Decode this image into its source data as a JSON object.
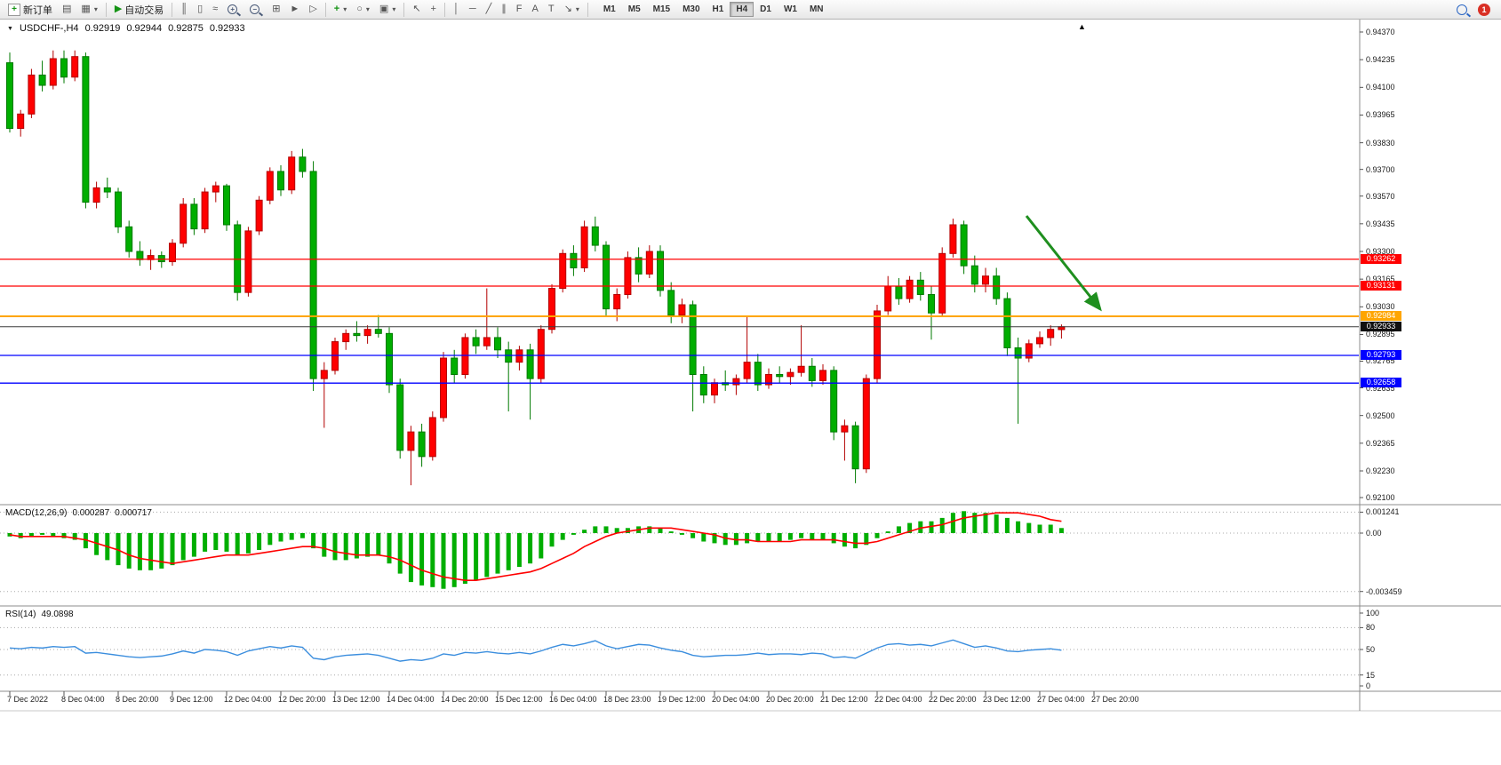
{
  "toolbar": {
    "new_order_label": "新订单",
    "auto_trading_label": "自动交易",
    "timeframes": [
      "M1",
      "M5",
      "M15",
      "M30",
      "H1",
      "H4",
      "D1",
      "W1",
      "MN"
    ],
    "active_timeframe": "H4",
    "notification_badge": "1",
    "glyphs": {
      "new_order_plus": "+",
      "new_chart": "▤",
      "profiles": "▦",
      "caret": "▾",
      "play": "▶",
      "bars_chart": "║",
      "candle_chart": "▯",
      "line_chart": "≈",
      "zoom_in": "+",
      "zoom_out": "−",
      "tile_windows": "⊞",
      "auto_scroll": "►",
      "chart_shift": "▷",
      "indicators_plus": "+",
      "clock": "○",
      "template": "▣",
      "cursor": "↖",
      "crosshair": "+",
      "vline": "│",
      "hline": "─",
      "trendline": "╱",
      "channel": "∥",
      "fibonacci": "F",
      "text_tool": "A",
      "label_tool": "T",
      "arrows_tool": "↘"
    }
  },
  "glyphs": {
    "header_triangle": "▼",
    "scroll_to_end_marker": "▲"
  },
  "chart_header": {
    "symbol_period": "USDCHF-,H4",
    "open": "0.92919",
    "high": "0.92944",
    "low": "0.92875",
    "close": "0.92933"
  },
  "macd_pane": {
    "label": "MACD(12,26,9)",
    "value_main": "0.000287",
    "value_signal": "0.000717"
  },
  "rsi_pane": {
    "label": "RSI(14)",
    "value": "49.0898"
  },
  "chart_data": {
    "type": "candlestick",
    "symbol": "USDCHF-",
    "period": "H4",
    "last_candle_ohlc": {
      "open": 0.92919,
      "high": 0.92944,
      "low": 0.92875,
      "close": 0.92933
    },
    "colors": {
      "up_fill": "#FF0000",
      "up_stroke": "#B30000",
      "down_fill": "#00AE00",
      "down_stroke": "#007A00",
      "macd_bar": "#00AE00",
      "macd_signal": "#FF0000",
      "rsi_line": "#3B8EDE"
    },
    "price_axis": {
      "top_price": 0.9437,
      "bottom_price": 0.921,
      "labels": [
        "0.94370",
        "0.94235",
        "0.94100",
        "0.93965",
        "0.93830",
        "0.93700",
        "0.93570",
        "0.93435",
        "0.93300",
        "0.93165",
        "0.93030",
        "0.92895",
        "0.92765",
        "0.92635",
        "0.92500",
        "0.92365",
        "0.92230",
        "0.92100"
      ]
    },
    "levels": [
      {
        "name": "resistance-upper",
        "price": 0.93262,
        "label": "0.93262",
        "color": "#FF0000",
        "width": 1.3,
        "badge_color": "#FF0000"
      },
      {
        "name": "resistance-lower",
        "price": 0.93131,
        "label": "0.93131",
        "color": "#FF0000",
        "width": 1.3,
        "badge_color": "#FF0000"
      },
      {
        "name": "pivot",
        "price": 0.92984,
        "label": "0.92984",
        "color": "#FFA500",
        "width": 2,
        "badge_color": "#FFA500"
      },
      {
        "name": "current-price",
        "price": 0.92933,
        "label": "0.92933",
        "color": "#3C3C3C",
        "width": 1,
        "badge_color": "#101010"
      },
      {
        "name": "support-upper",
        "price": 0.92793,
        "label": "0.92793",
        "color": "#0000FF",
        "width": 1.3,
        "badge_color": "#0000FF"
      },
      {
        "name": "support-lower",
        "price": 0.92658,
        "label": "0.92658",
        "color": "#0000FF",
        "width": 1.3,
        "badge_color": "#0000FF"
      }
    ],
    "candles": [
      [
        0.9422,
        0.9427,
        0.9388,
        0.939
      ],
      [
        0.939,
        0.9399,
        0.9386,
        0.9397
      ],
      [
        0.9397,
        0.9419,
        0.9395,
        0.9416
      ],
      [
        0.9416,
        0.9423,
        0.9408,
        0.9411
      ],
      [
        0.9411,
        0.9428,
        0.9409,
        0.9424
      ],
      [
        0.9424,
        0.9428,
        0.9412,
        0.9415
      ],
      [
        0.9415,
        0.9428,
        0.9413,
        0.9425
      ],
      [
        0.9425,
        0.9427,
        0.9351,
        0.9354
      ],
      [
        0.9354,
        0.9364,
        0.9351,
        0.9361
      ],
      [
        0.9361,
        0.9366,
        0.9356,
        0.9359
      ],
      [
        0.9359,
        0.9361,
        0.9339,
        0.9342
      ],
      [
        0.9342,
        0.9345,
        0.9327,
        0.933
      ],
      [
        0.933,
        0.9335,
        0.9323,
        0.9326
      ],
      [
        0.9326,
        0.9331,
        0.9321,
        0.9328
      ],
      [
        0.9328,
        0.933,
        0.9322,
        0.9325
      ],
      [
        0.9325,
        0.9336,
        0.9323,
        0.9334
      ],
      [
        0.9334,
        0.9356,
        0.9332,
        0.9353
      ],
      [
        0.9353,
        0.9356,
        0.9338,
        0.9341
      ],
      [
        0.9341,
        0.9361,
        0.9339,
        0.9359
      ],
      [
        0.9359,
        0.9364,
        0.9354,
        0.9362
      ],
      [
        0.9362,
        0.9363,
        0.934,
        0.9343
      ],
      [
        0.9343,
        0.9345,
        0.9306,
        0.931
      ],
      [
        0.931,
        0.9342,
        0.9308,
        0.934
      ],
      [
        0.934,
        0.9357,
        0.9338,
        0.9355
      ],
      [
        0.9355,
        0.9371,
        0.9353,
        0.9369
      ],
      [
        0.9369,
        0.9372,
        0.9357,
        0.936
      ],
      [
        0.936,
        0.9379,
        0.9358,
        0.9376
      ],
      [
        0.9376,
        0.938,
        0.9366,
        0.9369
      ],
      [
        0.9369,
        0.9374,
        0.9262,
        0.9268
      ],
      [
        0.9268,
        0.9276,
        0.9244,
        0.9272
      ],
      [
        0.9272,
        0.9288,
        0.927,
        0.9286
      ],
      [
        0.9286,
        0.9292,
        0.9282,
        0.929
      ],
      [
        0.929,
        0.9296,
        0.9286,
        0.9289
      ],
      [
        0.9289,
        0.9294,
        0.9285,
        0.9292
      ],
      [
        0.9292,
        0.9299,
        0.9288,
        0.929
      ],
      [
        0.929,
        0.9293,
        0.9261,
        0.9265
      ],
      [
        0.9265,
        0.9268,
        0.9229,
        0.9233
      ],
      [
        0.9233,
        0.9245,
        0.9216,
        0.9242
      ],
      [
        0.9242,
        0.9246,
        0.9225,
        0.923
      ],
      [
        0.923,
        0.9252,
        0.9228,
        0.9249
      ],
      [
        0.9249,
        0.9281,
        0.9247,
        0.9278
      ],
      [
        0.9278,
        0.9282,
        0.9266,
        0.927
      ],
      [
        0.927,
        0.929,
        0.9268,
        0.9288
      ],
      [
        0.9288,
        0.9292,
        0.928,
        0.9284
      ],
      [
        0.9284,
        0.9312,
        0.9282,
        0.9288
      ],
      [
        0.9288,
        0.9293,
        0.9278,
        0.9282
      ],
      [
        0.9282,
        0.9286,
        0.9252,
        0.9276
      ],
      [
        0.9276,
        0.9284,
        0.9272,
        0.9282
      ],
      [
        0.9282,
        0.9285,
        0.9248,
        0.9268
      ],
      [
        0.9268,
        0.9294,
        0.9266,
        0.9292
      ],
      [
        0.9292,
        0.9314,
        0.929,
        0.9312
      ],
      [
        0.9312,
        0.9331,
        0.931,
        0.9329
      ],
      [
        0.9329,
        0.9333,
        0.9318,
        0.9322
      ],
      [
        0.9322,
        0.9345,
        0.932,
        0.9342
      ],
      [
        0.9342,
        0.9347,
        0.933,
        0.9333
      ],
      [
        0.9333,
        0.9335,
        0.9298,
        0.9302
      ],
      [
        0.9302,
        0.9312,
        0.9296,
        0.9309
      ],
      [
        0.9309,
        0.933,
        0.9307,
        0.9327
      ],
      [
        0.9327,
        0.9332,
        0.9315,
        0.9319
      ],
      [
        0.9319,
        0.9333,
        0.9317,
        0.933
      ],
      [
        0.933,
        0.9333,
        0.9308,
        0.9311
      ],
      [
        0.9311,
        0.9315,
        0.9295,
        0.9299
      ],
      [
        0.9299,
        0.9307,
        0.9295,
        0.9304
      ],
      [
        0.9304,
        0.9306,
        0.9252,
        0.927
      ],
      [
        0.927,
        0.9274,
        0.9256,
        0.926
      ],
      [
        0.926,
        0.9268,
        0.9256,
        0.9266
      ],
      [
        0.9266,
        0.9272,
        0.9262,
        0.9265
      ],
      [
        0.9265,
        0.927,
        0.926,
        0.9268
      ],
      [
        0.9268,
        0.9298,
        0.9266,
        0.9276
      ],
      [
        0.9276,
        0.928,
        0.9262,
        0.9265
      ],
      [
        0.9265,
        0.9273,
        0.9263,
        0.927
      ],
      [
        0.927,
        0.9274,
        0.9266,
        0.9269
      ],
      [
        0.9269,
        0.9273,
        0.9265,
        0.9271
      ],
      [
        0.9271,
        0.9294,
        0.9269,
        0.9274
      ],
      [
        0.9274,
        0.9278,
        0.9264,
        0.9267
      ],
      [
        0.9267,
        0.9275,
        0.9265,
        0.9272
      ],
      [
        0.9272,
        0.9274,
        0.9238,
        0.9242
      ],
      [
        0.9242,
        0.9248,
        0.9228,
        0.9245
      ],
      [
        0.9245,
        0.9247,
        0.9217,
        0.9224
      ],
      [
        0.9224,
        0.927,
        0.9222,
        0.9268
      ],
      [
        0.9268,
        0.9304,
        0.9266,
        0.9301
      ],
      [
        0.9301,
        0.9318,
        0.9299,
        0.9313
      ],
      [
        0.9313,
        0.9317,
        0.9304,
        0.9307
      ],
      [
        0.9307,
        0.9318,
        0.9305,
        0.9316
      ],
      [
        0.9316,
        0.932,
        0.9306,
        0.9309
      ],
      [
        0.9309,
        0.9313,
        0.9287,
        0.93
      ],
      [
        0.93,
        0.9332,
        0.9298,
        0.9329
      ],
      [
        0.9329,
        0.9346,
        0.9327,
        0.9343
      ],
      [
        0.9343,
        0.9345,
        0.9319,
        0.9323
      ],
      [
        0.9323,
        0.9328,
        0.931,
        0.9314
      ],
      [
        0.9314,
        0.9322,
        0.931,
        0.9318
      ],
      [
        0.9318,
        0.9322,
        0.9304,
        0.9307
      ],
      [
        0.9307,
        0.931,
        0.9279,
        0.9283
      ],
      [
        0.9283,
        0.9288,
        0.9246,
        0.9278
      ],
      [
        0.9278,
        0.9287,
        0.9276,
        0.9285
      ],
      [
        0.9285,
        0.9291,
        0.9283,
        0.9288
      ],
      [
        0.9288,
        0.9294,
        0.9284,
        0.9292
      ],
      [
        0.92919,
        0.92944,
        0.92875,
        0.92933
      ]
    ],
    "time_axis": {
      "label_every": 5,
      "labels": [
        "7 Dec 2022",
        "8 Dec 04:00",
        "8 Dec 20:00",
        "9 Dec 12:00",
        "12 Dec 04:00",
        "12 Dec 20:00",
        "13 Dec 12:00",
        "14 Dec 04:00",
        "14 Dec 20:00",
        "15 Dec 12:00",
        "16 Dec 04:00",
        "18 Dec 23:00",
        "19 Dec 12:00",
        "20 Dec 04:00",
        "20 Dec 20:00",
        "21 Dec 12:00",
        "22 Dec 04:00",
        "22 Dec 20:00",
        "23 Dec 12:00",
        "27 Dec 04:00",
        "27 Dec 20:00"
      ]
    },
    "macd": {
      "params": "12,26,9",
      "current_macd": 0.000287,
      "current_signal": 0.000717,
      "axis_labels": [
        "0.001241",
        "0.00",
        "-0.003459"
      ],
      "axis_values": [
        0.001241,
        0,
        -0.003459
      ],
      "histogram": [
        -0.0002,
        -0.0003,
        -0.0002,
        -0.0001,
        -0.0002,
        -0.0003,
        -0.0004,
        -0.0009,
        -0.0013,
        -0.0016,
        -0.0019,
        -0.0021,
        -0.0022,
        -0.0022,
        -0.0021,
        -0.0019,
        -0.0016,
        -0.0014,
        -0.0011,
        -0.001,
        -0.0011,
        -0.0013,
        -0.0012,
        -0.001,
        -0.0007,
        -0.0005,
        -0.0004,
        -0.0003,
        -0.0009,
        -0.0014,
        -0.0016,
        -0.0016,
        -0.0015,
        -0.0014,
        -0.0013,
        -0.0018,
        -0.0024,
        -0.0029,
        -0.0031,
        -0.0032,
        -0.0033,
        -0.0032,
        -0.003,
        -0.0028,
        -0.0026,
        -0.0024,
        -0.0022,
        -0.002,
        -0.0018,
        -0.0015,
        -0.0008,
        -0.0004,
        -0.0001,
        0.0002,
        0.0004,
        0.0004,
        0.0003,
        0.0003,
        0.0004,
        0.0004,
        0.0003,
        0.0001,
        -0.0001,
        -0.0003,
        -0.0005,
        -0.0006,
        -0.0007,
        -0.0007,
        -0.0006,
        -0.0005,
        -0.0005,
        -0.0005,
        -0.0004,
        -0.0003,
        -0.0004,
        -0.0004,
        -0.0006,
        -0.0008,
        -0.0009,
        -0.0007,
        -0.0003,
        0.0001,
        0.0004,
        0.0006,
        0.0007,
        0.0007,
        0.0009,
        0.0012,
        0.0013,
        0.0012,
        0.0012,
        0.0011,
        0.0009,
        0.0007,
        0.0006,
        0.0005,
        0.0005,
        0.0003
      ],
      "signal": [
        -0.0001,
        -0.0002,
        -0.0002,
        -0.0002,
        -0.0002,
        -0.0002,
        -0.0003,
        -0.0004,
        -0.0006,
        -0.0008,
        -0.001,
        -0.0013,
        -0.0015,
        -0.0016,
        -0.0017,
        -0.0018,
        -0.0017,
        -0.0016,
        -0.0015,
        -0.0014,
        -0.0013,
        -0.0013,
        -0.0013,
        -0.0012,
        -0.0011,
        -0.001,
        -0.0009,
        -0.0008,
        -0.0008,
        -0.0009,
        -0.0011,
        -0.0012,
        -0.0013,
        -0.0013,
        -0.0013,
        -0.0014,
        -0.0016,
        -0.0019,
        -0.0022,
        -0.0024,
        -0.0026,
        -0.0027,
        -0.0028,
        -0.0028,
        -0.0027,
        -0.0026,
        -0.0025,
        -0.0024,
        -0.0023,
        -0.0021,
        -0.0018,
        -0.0015,
        -0.0012,
        -0.0008,
        -0.0005,
        -0.0002,
        0.0,
        0.0001,
        0.0002,
        0.0003,
        0.0003,
        0.0003,
        0.0002,
        0.0001,
        0.0,
        -0.0001,
        -0.0003,
        -0.0004,
        -0.0004,
        -0.0005,
        -0.0005,
        -0.0005,
        -0.0005,
        -0.0004,
        -0.0004,
        -0.0004,
        -0.0004,
        -0.0005,
        -0.0006,
        -0.0006,
        -0.0005,
        -0.0003,
        -0.0001,
        0.0001,
        0.0003,
        0.0004,
        0.0005,
        0.0007,
        0.0009,
        0.001,
        0.0011,
        0.0012,
        0.0012,
        0.0012,
        0.0011,
        0.001,
        0.0008,
        0.0007
      ]
    },
    "rsi": {
      "period": 14,
      "current": 49.0898,
      "axis_labels": [
        "100",
        "80",
        "50",
        "15",
        "0"
      ],
      "axis_values": [
        100,
        80,
        50,
        15,
        0
      ],
      "level_values": [
        80,
        50,
        15
      ],
      "values": [
        52,
        51,
        53,
        52,
        54,
        53,
        54,
        45,
        46,
        44,
        42,
        40,
        39,
        40,
        41,
        44,
        48,
        45,
        50,
        49,
        47,
        42,
        48,
        51,
        54,
        52,
        55,
        53,
        38,
        36,
        40,
        42,
        43,
        44,
        42,
        38,
        34,
        36,
        35,
        38,
        44,
        42,
        46,
        45,
        47,
        45,
        44,
        46,
        44,
        48,
        53,
        57,
        55,
        58,
        62,
        55,
        51,
        54,
        57,
        56,
        52,
        49,
        47,
        42,
        40,
        41,
        42,
        42,
        43,
        45,
        43,
        44,
        44,
        43,
        45,
        44,
        39,
        40,
        38,
        45,
        52,
        57,
        58,
        56,
        57,
        55,
        59,
        63,
        58,
        53,
        55,
        52,
        48,
        47,
        49,
        50,
        51,
        49
      ]
    },
    "annotation_arrow": {
      "from": [
        1155,
        243
      ],
      "to": [
        1238,
        348
      ],
      "color": "#1F8F1F"
    }
  }
}
